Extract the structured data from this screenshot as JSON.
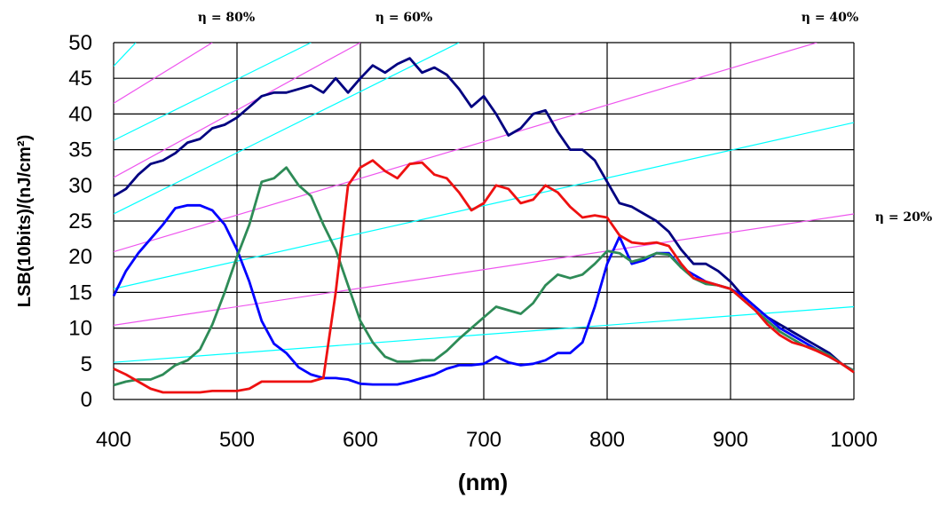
{
  "chart_data": {
    "type": "line",
    "title": "",
    "xlabel": "(nm)",
    "ylabel": "LSB(10bits)/(nJ/cm²)",
    "xlim": [
      400,
      1000
    ],
    "ylim": [
      0,
      50
    ],
    "x_ticks": [
      "400",
      "500",
      "600",
      "700",
      "800",
      "900",
      "1000"
    ],
    "y_ticks": [
      "0",
      "5",
      "10",
      "15",
      "20",
      "25",
      "30",
      "35",
      "40",
      "45",
      "50"
    ],
    "grid": true,
    "legend": "none",
    "efficiency_labels": [
      {
        "text": "η = 80%",
        "anchor": "top-left"
      },
      {
        "text": "η = 60%",
        "anchor": "top-center"
      },
      {
        "text": "η = 40%",
        "anchor": "top-right"
      },
      {
        "text": "η = 20%",
        "anchor": "right"
      }
    ],
    "reference_lines": [
      {
        "color": "#00ffff",
        "points": [
          [
            400,
            5.2
          ],
          [
            1000,
            13.0
          ]
        ]
      },
      {
        "color": "#00ffff",
        "points": [
          [
            400,
            15.5
          ],
          [
            1000,
            38.8
          ]
        ]
      },
      {
        "color": "#00ffff",
        "points": [
          [
            400,
            26.0
          ],
          [
            680,
            50
          ]
        ]
      },
      {
        "color": "#00ffff",
        "points": [
          [
            400,
            36.3
          ],
          [
            560,
            50
          ]
        ]
      },
      {
        "color": "#00ffff",
        "points": [
          [
            400,
            46.7
          ],
          [
            418,
            50
          ]
        ]
      },
      {
        "color": "#ee55ee",
        "points": [
          [
            400,
            10.4
          ],
          [
            1000,
            26.0
          ]
        ]
      },
      {
        "color": "#ee55ee",
        "points": [
          [
            400,
            20.7
          ],
          [
            970,
            50
          ]
        ]
      },
      {
        "color": "#ee55ee",
        "points": [
          [
            400,
            31.1
          ],
          [
            600,
            50
          ]
        ]
      },
      {
        "color": "#ee55ee",
        "points": [
          [
            400,
            41.5
          ],
          [
            480,
            50
          ]
        ]
      }
    ],
    "series": [
      {
        "color": "#000080",
        "points": [
          [
            400,
            28.5
          ],
          [
            410,
            29.5
          ],
          [
            420,
            31.5
          ],
          [
            430,
            33
          ],
          [
            440,
            33.5
          ],
          [
            450,
            34.5
          ],
          [
            460,
            36
          ],
          [
            470,
            36.5
          ],
          [
            480,
            38
          ],
          [
            490,
            38.5
          ],
          [
            500,
            39.5
          ],
          [
            510,
            41
          ],
          [
            520,
            42.5
          ],
          [
            530,
            43
          ],
          [
            540,
            43
          ],
          [
            550,
            43.5
          ],
          [
            560,
            44
          ],
          [
            570,
            43
          ],
          [
            580,
            45
          ],
          [
            590,
            43
          ],
          [
            600,
            45
          ],
          [
            610,
            46.8
          ],
          [
            620,
            45.8
          ],
          [
            630,
            47
          ],
          [
            640,
            47.8
          ],
          [
            650,
            45.8
          ],
          [
            660,
            46.5
          ],
          [
            670,
            45.5
          ],
          [
            680,
            43.5
          ],
          [
            690,
            41
          ],
          [
            700,
            42.5
          ],
          [
            710,
            40
          ],
          [
            720,
            37
          ],
          [
            730,
            38
          ],
          [
            740,
            40
          ],
          [
            750,
            40.5
          ],
          [
            760,
            37.5
          ],
          [
            770,
            35
          ],
          [
            780,
            35
          ],
          [
            790,
            33.5
          ],
          [
            800,
            30.5
          ],
          [
            810,
            27.5
          ],
          [
            820,
            27
          ],
          [
            830,
            26
          ],
          [
            840,
            25
          ],
          [
            850,
            23.5
          ],
          [
            860,
            21
          ],
          [
            870,
            19
          ],
          [
            880,
            19
          ],
          [
            890,
            18
          ],
          [
            900,
            16.5
          ],
          [
            910,
            14.5
          ],
          [
            920,
            13
          ],
          [
            930,
            11.5
          ],
          [
            940,
            10.5
          ],
          [
            950,
            9.5
          ],
          [
            960,
            8.5
          ],
          [
            970,
            7.5
          ],
          [
            980,
            6.5
          ],
          [
            990,
            5
          ],
          [
            1000,
            4
          ]
        ]
      },
      {
        "color": "#0000ff",
        "points": [
          [
            400,
            14.5
          ],
          [
            410,
            18
          ],
          [
            420,
            20.5
          ],
          [
            430,
            22.5
          ],
          [
            440,
            24.5
          ],
          [
            450,
            26.8
          ],
          [
            460,
            27.2
          ],
          [
            470,
            27.2
          ],
          [
            480,
            26.5
          ],
          [
            490,
            24.5
          ],
          [
            500,
            21
          ],
          [
            510,
            16.5
          ],
          [
            520,
            11
          ],
          [
            530,
            7.8
          ],
          [
            540,
            6.5
          ],
          [
            550,
            4.5
          ],
          [
            560,
            3.5
          ],
          [
            570,
            3
          ],
          [
            580,
            3
          ],
          [
            590,
            2.8
          ],
          [
            600,
            2.2
          ],
          [
            610,
            2.1
          ],
          [
            620,
            2.1
          ],
          [
            630,
            2.1
          ],
          [
            640,
            2.5
          ],
          [
            650,
            3
          ],
          [
            660,
            3.5
          ],
          [
            670,
            4.3
          ],
          [
            680,
            4.8
          ],
          [
            690,
            4.8
          ],
          [
            700,
            5
          ],
          [
            710,
            6
          ],
          [
            720,
            5.2
          ],
          [
            730,
            4.8
          ],
          [
            740,
            5
          ],
          [
            750,
            5.5
          ],
          [
            760,
            6.5
          ],
          [
            770,
            6.5
          ],
          [
            780,
            8
          ],
          [
            790,
            13
          ],
          [
            800,
            19
          ],
          [
            810,
            22.8
          ],
          [
            820,
            19
          ],
          [
            830,
            19.5
          ],
          [
            840,
            20.5
          ],
          [
            850,
            20.5
          ],
          [
            860,
            18.5
          ],
          [
            870,
            17.5
          ],
          [
            880,
            16.5
          ],
          [
            890,
            16
          ],
          [
            900,
            15.5
          ],
          [
            910,
            14.5
          ],
          [
            920,
            13
          ],
          [
            930,
            11.5
          ],
          [
            940,
            10
          ],
          [
            950,
            9
          ],
          [
            960,
            8
          ],
          [
            970,
            7
          ],
          [
            980,
            6
          ],
          [
            990,
            5
          ],
          [
            1000,
            4
          ]
        ]
      },
      {
        "color": "#2e8b57",
        "points": [
          [
            400,
            2
          ],
          [
            410,
            2.5
          ],
          [
            420,
            2.8
          ],
          [
            430,
            2.8
          ],
          [
            440,
            3.5
          ],
          [
            450,
            4.8
          ],
          [
            460,
            5.5
          ],
          [
            470,
            7
          ],
          [
            480,
            10.5
          ],
          [
            490,
            15
          ],
          [
            500,
            20
          ],
          [
            510,
            24.5
          ],
          [
            520,
            30.5
          ],
          [
            530,
            31
          ],
          [
            540,
            32.5
          ],
          [
            550,
            30
          ],
          [
            560,
            28.5
          ],
          [
            570,
            24.5
          ],
          [
            580,
            21
          ],
          [
            590,
            16
          ],
          [
            600,
            11
          ],
          [
            610,
            8
          ],
          [
            620,
            6
          ],
          [
            630,
            5.3
          ],
          [
            640,
            5.3
          ],
          [
            650,
            5.5
          ],
          [
            660,
            5.5
          ],
          [
            670,
            6.8
          ],
          [
            680,
            8.5
          ],
          [
            690,
            10
          ],
          [
            700,
            11.5
          ],
          [
            710,
            13
          ],
          [
            720,
            12.5
          ],
          [
            730,
            12
          ],
          [
            740,
            13.5
          ],
          [
            750,
            16
          ],
          [
            760,
            17.5
          ],
          [
            770,
            17
          ],
          [
            780,
            17.5
          ],
          [
            790,
            19
          ],
          [
            800,
            20.8
          ],
          [
            810,
            20.5
          ],
          [
            820,
            19.3
          ],
          [
            830,
            19.8
          ],
          [
            840,
            20.5
          ],
          [
            850,
            20.3
          ],
          [
            860,
            18.5
          ],
          [
            870,
            17
          ],
          [
            880,
            16.2
          ],
          [
            890,
            16
          ],
          [
            900,
            15.5
          ],
          [
            910,
            14
          ],
          [
            920,
            12.5
          ],
          [
            930,
            11
          ],
          [
            940,
            9.5
          ],
          [
            950,
            8.5
          ],
          [
            960,
            7.5
          ],
          [
            970,
            7
          ],
          [
            980,
            6.2
          ],
          [
            990,
            5
          ],
          [
            1000,
            4
          ]
        ]
      },
      {
        "color": "#ee1111",
        "points": [
          [
            400,
            4.3
          ],
          [
            410,
            3.5
          ],
          [
            420,
            2.5
          ],
          [
            430,
            1.5
          ],
          [
            440,
            1
          ],
          [
            450,
            1
          ],
          [
            460,
            1
          ],
          [
            470,
            1
          ],
          [
            480,
            1.2
          ],
          [
            490,
            1.2
          ],
          [
            500,
            1.2
          ],
          [
            510,
            1.5
          ],
          [
            520,
            2.5
          ],
          [
            530,
            2.5
          ],
          [
            540,
            2.5
          ],
          [
            550,
            2.5
          ],
          [
            560,
            2.5
          ],
          [
            570,
            3
          ],
          [
            580,
            15
          ],
          [
            590,
            30
          ],
          [
            600,
            32.5
          ],
          [
            610,
            33.5
          ],
          [
            620,
            32
          ],
          [
            630,
            31
          ],
          [
            640,
            33
          ],
          [
            650,
            33.2
          ],
          [
            660,
            31.5
          ],
          [
            670,
            31
          ],
          [
            680,
            29
          ],
          [
            690,
            26.5
          ],
          [
            700,
            27.5
          ],
          [
            710,
            30
          ],
          [
            720,
            29.5
          ],
          [
            730,
            27.5
          ],
          [
            740,
            28
          ],
          [
            750,
            30
          ],
          [
            760,
            29
          ],
          [
            770,
            27
          ],
          [
            780,
            25.5
          ],
          [
            790,
            25.8
          ],
          [
            800,
            25.5
          ],
          [
            810,
            23
          ],
          [
            820,
            22
          ],
          [
            830,
            21.8
          ],
          [
            840,
            22
          ],
          [
            850,
            21.5
          ],
          [
            860,
            19
          ],
          [
            870,
            17
          ],
          [
            880,
            16.5
          ],
          [
            890,
            16
          ],
          [
            900,
            15.5
          ],
          [
            910,
            14
          ],
          [
            920,
            12.5
          ],
          [
            930,
            10.5
          ],
          [
            940,
            9
          ],
          [
            950,
            8
          ],
          [
            960,
            7.5
          ],
          [
            970,
            6.8
          ],
          [
            980,
            6
          ],
          [
            990,
            5
          ],
          [
            1000,
            3.8
          ]
        ]
      }
    ]
  }
}
